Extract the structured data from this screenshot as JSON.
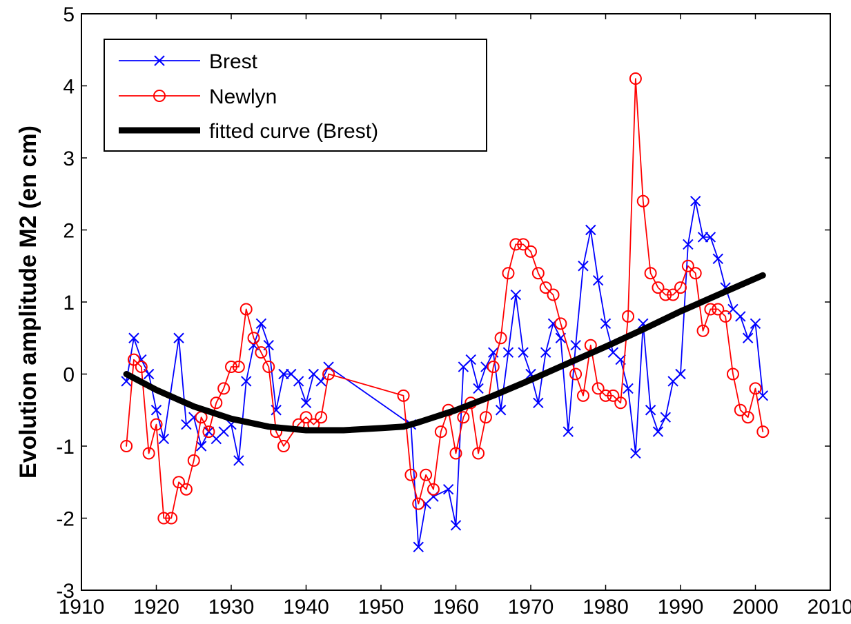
{
  "chart_data": {
    "type": "line",
    "title": "",
    "xlabel": "",
    "ylabel": "Evolution amplitude M2 (en cm)",
    "xlim": [
      1910,
      2010
    ],
    "ylim": [
      -3,
      5
    ],
    "xticks": [
      1910,
      1920,
      1930,
      1940,
      1950,
      1960,
      1970,
      1980,
      1990,
      2000,
      2010
    ],
    "yticks": [
      -3,
      -2,
      -1,
      0,
      1,
      2,
      3,
      4,
      5
    ],
    "grid": false,
    "legend_position": "top-left",
    "series": [
      {
        "name": "Brest",
        "color": "#0000ff",
        "marker": "x",
        "x": [
          1916,
          1917,
          1918,
          1919,
          1920,
          1921,
          1923,
          1924,
          1925,
          1926,
          1927,
          1928,
          1929,
          1930,
          1931,
          1932,
          1933,
          1934,
          1935,
          1936,
          1937,
          1938,
          1939,
          1940,
          1941,
          1942,
          1943,
          1954,
          1955,
          1956,
          1957,
          1959,
          1960,
          1961,
          1962,
          1963,
          1964,
          1965,
          1966,
          1967,
          1968,
          1969,
          1970,
          1971,
          1972,
          1973,
          1974,
          1975,
          1976,
          1977,
          1978,
          1979,
          1980,
          1981,
          1982,
          1983,
          1984,
          1985,
          1986,
          1987,
          1988,
          1989,
          1990,
          1991,
          1992,
          1993,
          1994,
          1995,
          1996,
          1997,
          1998,
          1999,
          2000,
          2001
        ],
        "y": [
          -0.1,
          0.5,
          0.2,
          0.0,
          -0.5,
          -0.9,
          0.5,
          -0.7,
          -0.6,
          -1.0,
          -0.8,
          -0.9,
          -0.8,
          -0.7,
          -1.2,
          -0.1,
          0.4,
          0.7,
          0.4,
          -0.5,
          0.0,
          0.0,
          -0.1,
          -0.4,
          0.0,
          -0.1,
          0.1,
          -0.7,
          -2.4,
          -1.8,
          -1.7,
          -1.6,
          -2.1,
          0.1,
          0.2,
          -0.2,
          0.1,
          0.3,
          -0.5,
          0.3,
          1.1,
          0.3,
          0.0,
          -0.4,
          0.3,
          0.7,
          0.5,
          -0.8,
          0.4,
          1.5,
          2.0,
          1.3,
          0.7,
          0.3,
          0.2,
          -0.2,
          -1.1,
          0.7,
          -0.5,
          -0.8,
          -0.6,
          -0.1,
          0.0,
          1.8,
          2.4,
          1.9,
          1.9,
          1.6,
          1.2,
          0.9,
          0.8,
          0.5,
          0.7,
          -0.3
        ]
      },
      {
        "name": "Newlyn",
        "color": "#ff0000",
        "marker": "o",
        "x": [
          1916,
          1917,
          1918,
          1919,
          1920,
          1921,
          1922,
          1923,
          1924,
          1925,
          1926,
          1927,
          1928,
          1929,
          1930,
          1931,
          1932,
          1933,
          1934,
          1935,
          1936,
          1937,
          1939,
          1940,
          1941,
          1942,
          1943,
          1953,
          1954,
          1955,
          1956,
          1957,
          1958,
          1959,
          1960,
          1961,
          1962,
          1963,
          1964,
          1965,
          1966,
          1967,
          1968,
          1969,
          1970,
          1971,
          1972,
          1973,
          1974,
          1976,
          1977,
          1978,
          1979,
          1980,
          1981,
          1982,
          1983,
          1984,
          1985,
          1986,
          1987,
          1988,
          1989,
          1990,
          1991,
          1992,
          1993,
          1994,
          1995,
          1996,
          1997,
          1998,
          1999,
          2000,
          2001
        ],
        "y": [
          -1.0,
          0.2,
          0.1,
          -1.1,
          -0.7,
          -2.0,
          -2.0,
          -1.5,
          -1.6,
          -1.2,
          -0.6,
          -0.8,
          -0.4,
          -0.2,
          0.1,
          0.1,
          0.9,
          0.5,
          0.3,
          0.1,
          -0.8,
          -1.0,
          -0.7,
          -0.6,
          -0.7,
          -0.6,
          0.0,
          -0.3,
          -1.4,
          -1.8,
          -1.4,
          -1.6,
          -0.8,
          -0.5,
          -1.1,
          -0.6,
          -0.4,
          -1.1,
          -0.6,
          0.1,
          0.5,
          1.4,
          1.8,
          1.8,
          1.7,
          1.4,
          1.2,
          1.1,
          0.7,
          0.0,
          -0.3,
          0.4,
          -0.2,
          -0.3,
          -0.3,
          -0.4,
          0.8,
          4.1,
          2.4,
          1.4,
          1.2,
          1.1,
          1.1,
          1.2,
          1.5,
          1.4,
          0.6,
          0.9,
          0.9,
          0.8,
          0.0,
          -0.5,
          -0.6,
          -0.2,
          -0.8
        ]
      },
      {
        "name": "fitted curve (Brest)",
        "color": "#000000",
        "marker": "none",
        "x": [
          1916,
          1920,
          1925,
          1930,
          1935,
          1940,
          1945,
          1950,
          1953,
          1955,
          1960,
          1965,
          1970,
          1975,
          1980,
          1985,
          1990,
          1995,
          2001
        ],
        "y": [
          0.0,
          -0.22,
          -0.45,
          -0.62,
          -0.73,
          -0.78,
          -0.78,
          -0.75,
          -0.73,
          -0.67,
          -0.5,
          -0.3,
          -0.08,
          0.15,
          0.38,
          0.62,
          0.87,
          1.1,
          1.37
        ]
      }
    ]
  }
}
